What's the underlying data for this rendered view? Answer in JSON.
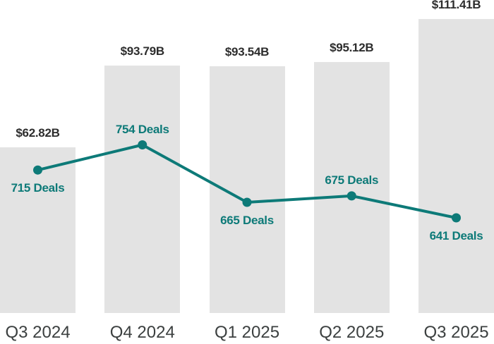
{
  "chart_data": {
    "type": "bar+line",
    "title": "",
    "categories": [
      "Q3 2024",
      "Q4 2024",
      "Q1 2025",
      "Q2 2025",
      "Q3 2025"
    ],
    "series": [
      {
        "name": "deal-value",
        "type": "bar",
        "unit": "USD billions",
        "values": [
          62.82,
          93.79,
          93.54,
          95.12,
          111.41
        ],
        "labels": [
          "$62.82B",
          "$93.79B",
          "$93.54B",
          "$95.12B",
          "$111.41B"
        ]
      },
      {
        "name": "deal-count",
        "type": "line",
        "unit": "deals",
        "values": [
          715,
          754,
          665,
          675,
          641
        ],
        "labels": [
          "715 Deals",
          "754 Deals",
          "665 Deals",
          "675 Deals",
          "641 Deals"
        ],
        "label_positions": [
          "below",
          "above",
          "below",
          "above",
          "below"
        ]
      }
    ],
    "xlabel": "",
    "ylabel": "",
    "grid": false,
    "legend_position": "none",
    "axis_baseline_value": 0,
    "colors": {
      "bar": "#e3e3e3",
      "line": "#0d7a78",
      "point": "#0d7a78",
      "value_label": "#2d2d2d",
      "deal_label": "#0d7a78",
      "axis_label": "#3c4040",
      "background": "#ffffff"
    }
  }
}
